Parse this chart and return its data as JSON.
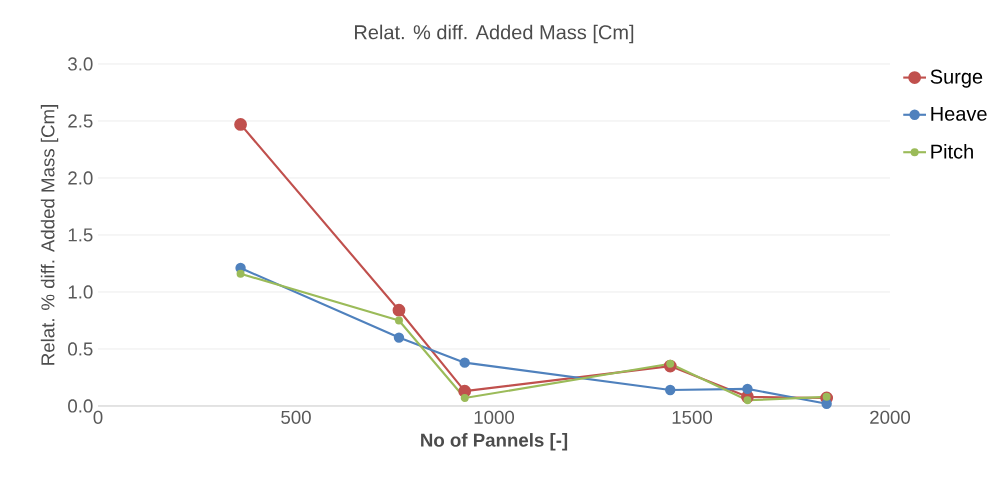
{
  "chart_data": {
    "type": "line",
    "title": "Relat. % diff. Added Mass [Cm]",
    "xlabel": "No of Pannels [-]",
    "ylabel": "Relat. % diff. Added Mass [Cm]",
    "x": [
      360,
      760,
      926,
      1445,
      1640,
      1840
    ],
    "series": [
      {
        "name": "Surge",
        "color": "#c0504d",
        "values": [
          2.47,
          0.84,
          0.13,
          0.35,
          0.08,
          0.07
        ]
      },
      {
        "name": "Heave",
        "color": "#4f81bd",
        "values": [
          1.21,
          0.6,
          0.38,
          0.14,
          0.15,
          0.02
        ]
      },
      {
        "name": "Pitch",
        "color": "#9bbb59",
        "values": [
          1.16,
          0.75,
          0.07,
          0.37,
          0.05,
          0.08
        ]
      }
    ],
    "xlim": [
      0,
      2000
    ],
    "xticks": [
      0,
      500,
      1000,
      1500,
      2000
    ],
    "ylim": [
      0,
      3
    ],
    "yticks": [
      {
        "value": 0,
        "label": "0.0"
      },
      {
        "value": 0.5,
        "label": "0.5"
      },
      {
        "value": 1,
        "label": "1.0"
      },
      {
        "value": 1.5,
        "label": "1.5"
      },
      {
        "value": 2,
        "label": "2.0"
      },
      {
        "value": 2.5,
        "label": "2.5"
      },
      {
        "value": 3,
        "label": "3.0"
      }
    ],
    "grid": "y",
    "legend": "right",
    "marker": "circle",
    "line_style": "solid"
  }
}
